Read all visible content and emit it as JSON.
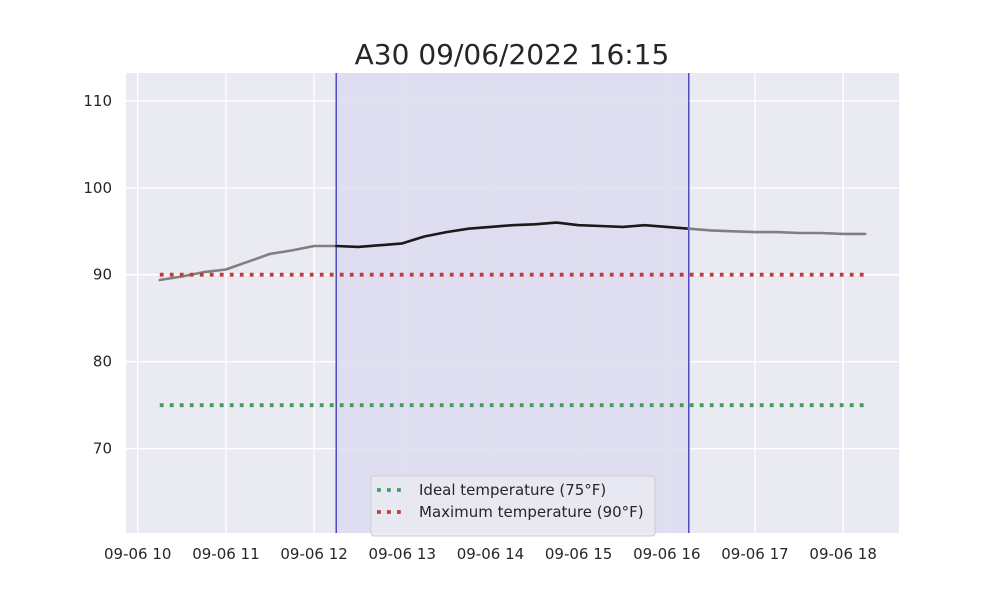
{
  "chart_data": {
    "type": "line",
    "title": "A30 09/06/2022 16:15",
    "xlabel": "",
    "ylabel": "",
    "x_ticks": [
      "09-06 10",
      "09-06 11",
      "09-06 12",
      "09-06 13",
      "09-06 14",
      "09-06 15",
      "09-06 16",
      "09-06 17",
      "09-06 18"
    ],
    "y_ticks": [
      70,
      80,
      90,
      100,
      110
    ],
    "xlim": [
      "09-06 09:52",
      "09-06 18:38"
    ],
    "ylim": [
      60.3,
      113.2
    ],
    "grid": true,
    "legend_position": "bottom-center",
    "highlight_window": {
      "start": "09-06 12:15",
      "end": "09-06 16:15",
      "fill_color": "#dcdcf0",
      "edge_color": "#0000aa"
    },
    "series": [
      {
        "color": "#808080",
        "x": [
          "09-06 10:15",
          "09-06 10:30",
          "09-06 10:45",
          "09-06 11:00",
          "09-06 11:15",
          "09-06 11:30",
          "09-06 11:45",
          "09-06 12:00",
          "09-06 12:15"
        ],
        "y": [
          89.4,
          89.8,
          90.3,
          90.6,
          91.5,
          92.4,
          92.8,
          93.3,
          93.3
        ]
      },
      {
        "color": "#1a1a1a",
        "x": [
          "09-06 12:15",
          "09-06 12:30",
          "09-06 12:45",
          "09-06 13:00",
          "09-06 13:15",
          "09-06 13:30",
          "09-06 13:45",
          "09-06 14:00",
          "09-06 14:15",
          "09-06 14:30",
          "09-06 14:45",
          "09-06 15:00",
          "09-06 15:15",
          "09-06 15:30",
          "09-06 15:45",
          "09-06 16:00",
          "09-06 16:15"
        ],
        "y": [
          93.3,
          93.2,
          93.4,
          93.6,
          94.4,
          94.9,
          95.3,
          95.5,
          95.7,
          95.8,
          96.0,
          95.7,
          95.6,
          95.5,
          95.7,
          95.5,
          95.3
        ]
      },
      {
        "color": "#808080",
        "x": [
          "09-06 16:15",
          "09-06 16:30",
          "09-06 16:45",
          "09-06 17:00",
          "09-06 17:15",
          "09-06 17:30",
          "09-06 17:45",
          "09-06 18:00",
          "09-06 18:15"
        ],
        "y": [
          95.3,
          95.1,
          95.0,
          94.9,
          94.9,
          94.8,
          94.8,
          94.7,
          94.7
        ]
      },
      {
        "name": "Ideal temperature (75°F)",
        "color": "#3f9f5a",
        "style": "dotted",
        "x": [
          "09-06 10:15",
          "09-06 18:15"
        ],
        "y": [
          75,
          75
        ]
      },
      {
        "name": "Maximum temperature (90°F)",
        "color": "#c23b3b",
        "style": "dotted",
        "x": [
          "09-06 10:15",
          "09-06 18:15"
        ],
        "y": [
          90,
          90
        ]
      }
    ]
  }
}
